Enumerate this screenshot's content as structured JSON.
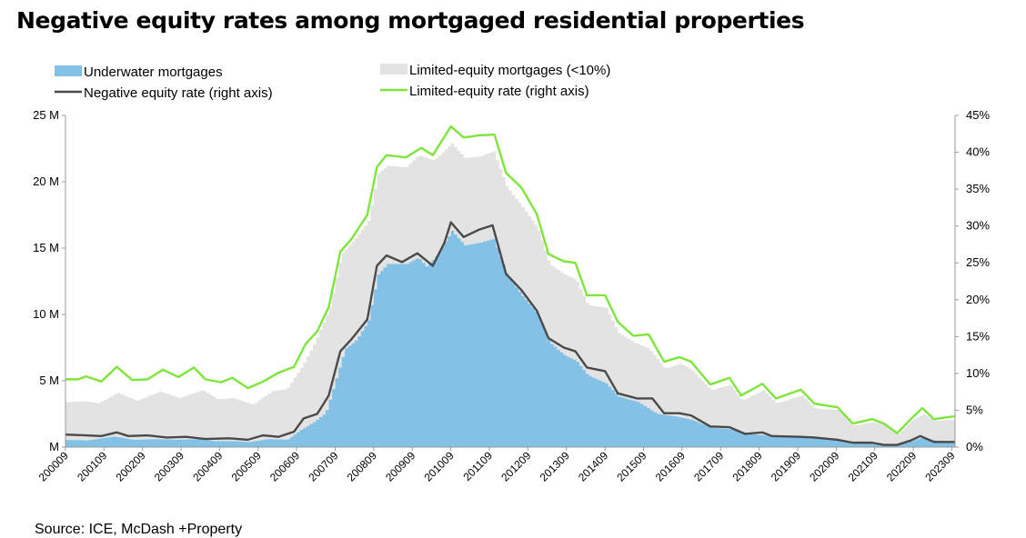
{
  "title": "Negative equity rates among mortgaged residential properties",
  "source": "Source: ICE, McDash +Property",
  "chart_data": {
    "type": "area",
    "x_key_labels": [
      "200009",
      "200109",
      "200209",
      "200309",
      "200409",
      "200509",
      "200609",
      "200709",
      "200809",
      "200909",
      "201009",
      "201109",
      "201209",
      "201309",
      "201409",
      "201509",
      "201609",
      "201709",
      "201809",
      "201909",
      "202009",
      "202109",
      "202209",
      "202309"
    ],
    "left_axis": {
      "ylim": [
        0,
        25
      ],
      "ticks": [
        0,
        5,
        10,
        15,
        20,
        25
      ],
      "tick_labels": [
        "M",
        "5 M",
        "10 M",
        "15 M",
        "20 M",
        "25 M"
      ]
    },
    "right_axis": {
      "ylim": [
        0,
        45
      ],
      "ticks": [
        0,
        5,
        10,
        15,
        20,
        25,
        30,
        35,
        40,
        45
      ],
      "tick_labels": [
        "0%",
        "5%",
        "10%",
        "15%",
        "20%",
        "25%",
        "30%",
        "35%",
        "40%",
        "45%"
      ]
    },
    "grid": false,
    "legend": {
      "placement": "top",
      "items": [
        {
          "label": "Underwater mortgages",
          "kind": "area",
          "color": "#83c1e7"
        },
        {
          "label": "Limited-equity mortgages (<10%)",
          "kind": "area",
          "color": "#e3e3e3"
        },
        {
          "label": "Negative equity rate (right axis)",
          "kind": "line",
          "color": "#4a4a4a"
        },
        {
          "label": "Limited-equity rate (right axis)",
          "kind": "line",
          "color": "#7ee53a"
        }
      ]
    },
    "series": [
      {
        "name": "Underwater mortgages",
        "axis": "left",
        "unit": "M",
        "color": "#83c1e7",
        "points": [
          [
            2000.67,
            0.55
          ],
          [
            2001.2,
            0.5
          ],
          [
            2001.9,
            0.8
          ],
          [
            2002.4,
            0.55
          ],
          [
            2003.0,
            0.6
          ],
          [
            2003.5,
            0.55
          ],
          [
            2004.1,
            0.6
          ],
          [
            2004.5,
            0.45
          ],
          [
            2005.0,
            0.45
          ],
          [
            2005.4,
            0.38
          ],
          [
            2005.9,
            0.6
          ],
          [
            2006.4,
            0.55
          ],
          [
            2006.75,
            1.3
          ],
          [
            2007.1,
            1.9
          ],
          [
            2007.4,
            2.6
          ],
          [
            2007.6,
            4.5
          ],
          [
            2007.9,
            7.4
          ],
          [
            2008.2,
            8.1
          ],
          [
            2008.5,
            9.5
          ],
          [
            2008.75,
            13.0
          ],
          [
            2009.0,
            13.8
          ],
          [
            2009.5,
            13.8
          ],
          [
            2009.8,
            14.3
          ],
          [
            2010.0,
            13.6
          ],
          [
            2010.3,
            14.5
          ],
          [
            2010.67,
            16.3
          ],
          [
            2011.0,
            15.2
          ],
          [
            2011.4,
            15.4
          ],
          [
            2011.75,
            15.7
          ],
          [
            2012.1,
            13.0
          ],
          [
            2012.5,
            11.4
          ],
          [
            2012.9,
            10.0
          ],
          [
            2013.2,
            7.9
          ],
          [
            2013.6,
            6.9
          ],
          [
            2013.9,
            6.5
          ],
          [
            2014.2,
            5.4
          ],
          [
            2014.67,
            4.8
          ],
          [
            2015.0,
            3.8
          ],
          [
            2015.5,
            3.4
          ],
          [
            2016.0,
            2.5
          ],
          [
            2016.5,
            2.3
          ],
          [
            2016.9,
            2.05
          ],
          [
            2017.4,
            1.45
          ],
          [
            2017.9,
            1.35
          ],
          [
            2018.3,
            1.0
          ],
          [
            2018.75,
            0.9
          ],
          [
            2019.2,
            0.75
          ],
          [
            2019.75,
            0.8
          ],
          [
            2020.2,
            0.7
          ],
          [
            2020.7,
            0.6
          ],
          [
            2021.2,
            0.3
          ],
          [
            2021.75,
            0.25
          ],
          [
            2022.2,
            0.2
          ],
          [
            2022.6,
            0.45
          ],
          [
            2022.9,
            0.75
          ],
          [
            2023.2,
            0.5
          ],
          [
            2023.75,
            0.35
          ]
        ]
      },
      {
        "name": "Limited-equity mortgages (<10%)",
        "axis": "left",
        "unit": "M",
        "color": "#e3e3e3",
        "points": [
          [
            2000.67,
            3.4
          ],
          [
            2001.2,
            3.45
          ],
          [
            2001.5,
            3.3
          ],
          [
            2002.0,
            4.1
          ],
          [
            2002.5,
            3.5
          ],
          [
            2003.1,
            4.2
          ],
          [
            2003.6,
            3.7
          ],
          [
            2004.2,
            4.3
          ],
          [
            2004.6,
            3.6
          ],
          [
            2005.0,
            3.7
          ],
          [
            2005.5,
            3.2
          ],
          [
            2006.0,
            4.2
          ],
          [
            2006.4,
            4.4
          ],
          [
            2006.8,
            6.2
          ],
          [
            2007.1,
            7.8
          ],
          [
            2007.5,
            10.5
          ],
          [
            2007.8,
            14.5
          ],
          [
            2008.1,
            15.5
          ],
          [
            2008.5,
            17.0
          ],
          [
            2008.75,
            20.6
          ],
          [
            2009.0,
            21.2
          ],
          [
            2009.5,
            21.1
          ],
          [
            2009.8,
            22.0
          ],
          [
            2010.2,
            21.6
          ],
          [
            2010.67,
            22.9
          ],
          [
            2011.0,
            21.8
          ],
          [
            2011.4,
            21.9
          ],
          [
            2011.75,
            22.3
          ],
          [
            2012.1,
            19.6
          ],
          [
            2012.5,
            18.1
          ],
          [
            2012.9,
            16.5
          ],
          [
            2013.2,
            13.8
          ],
          [
            2013.6,
            13.0
          ],
          [
            2013.9,
            12.6
          ],
          [
            2014.2,
            10.7
          ],
          [
            2014.67,
            10.5
          ],
          [
            2015.0,
            8.6
          ],
          [
            2015.4,
            7.9
          ],
          [
            2015.8,
            7.4
          ],
          [
            2016.2,
            5.9
          ],
          [
            2016.6,
            6.3
          ],
          [
            2016.9,
            5.8
          ],
          [
            2017.4,
            4.3
          ],
          [
            2017.9,
            4.7
          ],
          [
            2018.2,
            3.5
          ],
          [
            2018.75,
            4.3
          ],
          [
            2019.1,
            3.3
          ],
          [
            2019.75,
            3.9
          ],
          [
            2020.1,
            2.9
          ],
          [
            2020.7,
            2.8
          ],
          [
            2021.1,
            1.6
          ],
          [
            2021.6,
            1.9
          ],
          [
            2021.9,
            1.7
          ],
          [
            2022.25,
            1.0
          ],
          [
            2022.6,
            2.0
          ],
          [
            2022.9,
            2.5
          ],
          [
            2023.2,
            2.0
          ],
          [
            2023.75,
            2.05
          ]
        ]
      },
      {
        "name": "Negative equity rate (right axis)",
        "axis": "right",
        "unit": "%",
        "color": "#4a4a4a",
        "points": [
          [
            2000.67,
            1.7
          ],
          [
            2001.2,
            1.6
          ],
          [
            2001.6,
            1.5
          ],
          [
            2002.0,
            2.0
          ],
          [
            2002.3,
            1.5
          ],
          [
            2002.8,
            1.6
          ],
          [
            2003.3,
            1.3
          ],
          [
            2003.8,
            1.4
          ],
          [
            2004.3,
            1.1
          ],
          [
            2004.9,
            1.2
          ],
          [
            2005.4,
            1.0
          ],
          [
            2005.8,
            1.6
          ],
          [
            2006.2,
            1.4
          ],
          [
            2006.6,
            2.1
          ],
          [
            2006.85,
            3.9
          ],
          [
            2007.2,
            4.5
          ],
          [
            2007.5,
            7.0
          ],
          [
            2007.8,
            13.0
          ],
          [
            2008.1,
            14.7
          ],
          [
            2008.5,
            17.3
          ],
          [
            2008.75,
            24.6
          ],
          [
            2009.0,
            26.0
          ],
          [
            2009.4,
            25.1
          ],
          [
            2009.8,
            26.3
          ],
          [
            2010.2,
            24.6
          ],
          [
            2010.5,
            27.7
          ],
          [
            2010.67,
            30.5
          ],
          [
            2011.0,
            28.5
          ],
          [
            2011.4,
            29.5
          ],
          [
            2011.75,
            30.1
          ],
          [
            2012.1,
            23.5
          ],
          [
            2012.5,
            21.3
          ],
          [
            2012.9,
            18.5
          ],
          [
            2013.2,
            14.8
          ],
          [
            2013.6,
            13.5
          ],
          [
            2013.9,
            13.0
          ],
          [
            2014.2,
            10.8
          ],
          [
            2014.67,
            10.3
          ],
          [
            2015.0,
            7.3
          ],
          [
            2015.5,
            6.6
          ],
          [
            2015.9,
            6.6
          ],
          [
            2016.2,
            4.6
          ],
          [
            2016.6,
            4.6
          ],
          [
            2016.9,
            4.3
          ],
          [
            2017.4,
            2.8
          ],
          [
            2017.9,
            2.7
          ],
          [
            2018.3,
            1.8
          ],
          [
            2018.75,
            2.0
          ],
          [
            2019.0,
            1.5
          ],
          [
            2019.75,
            1.4
          ],
          [
            2020.1,
            1.3
          ],
          [
            2020.7,
            1.0
          ],
          [
            2021.1,
            0.6
          ],
          [
            2021.6,
            0.6
          ],
          [
            2021.9,
            0.3
          ],
          [
            2022.25,
            0.3
          ],
          [
            2022.6,
            0.9
          ],
          [
            2022.85,
            1.5
          ],
          [
            2023.2,
            0.7
          ],
          [
            2023.75,
            0.7
          ]
        ]
      },
      {
        "name": "Limited-equity rate (right axis)",
        "axis": "right",
        "unit": "%",
        "color": "#7ee53a",
        "points": [
          [
            2000.67,
            9.2
          ],
          [
            2001.0,
            9.2
          ],
          [
            2001.2,
            9.6
          ],
          [
            2001.6,
            8.9
          ],
          [
            2002.0,
            10.9
          ],
          [
            2002.4,
            9.1
          ],
          [
            2002.8,
            9.2
          ],
          [
            2003.2,
            10.5
          ],
          [
            2003.6,
            9.5
          ],
          [
            2004.0,
            10.8
          ],
          [
            2004.3,
            9.2
          ],
          [
            2004.7,
            8.8
          ],
          [
            2005.0,
            9.4
          ],
          [
            2005.4,
            8.0
          ],
          [
            2005.8,
            8.9
          ],
          [
            2006.2,
            10.1
          ],
          [
            2006.6,
            10.9
          ],
          [
            2006.9,
            14.0
          ],
          [
            2007.2,
            15.7
          ],
          [
            2007.5,
            19.0
          ],
          [
            2007.8,
            26.5
          ],
          [
            2008.1,
            28.3
          ],
          [
            2008.5,
            31.5
          ],
          [
            2008.75,
            38.0
          ],
          [
            2009.0,
            39.6
          ],
          [
            2009.5,
            39.3
          ],
          [
            2009.9,
            40.6
          ],
          [
            2010.2,
            39.6
          ],
          [
            2010.67,
            43.5
          ],
          [
            2011.0,
            42.0
          ],
          [
            2011.4,
            42.3
          ],
          [
            2011.8,
            42.4
          ],
          [
            2012.1,
            37.2
          ],
          [
            2012.5,
            35.2
          ],
          [
            2012.9,
            31.6
          ],
          [
            2013.2,
            26.2
          ],
          [
            2013.6,
            25.2
          ],
          [
            2013.9,
            25.0
          ],
          [
            2014.2,
            20.6
          ],
          [
            2014.67,
            20.6
          ],
          [
            2015.0,
            17.0
          ],
          [
            2015.4,
            15.1
          ],
          [
            2015.8,
            15.3
          ],
          [
            2016.2,
            11.6
          ],
          [
            2016.6,
            12.2
          ],
          [
            2016.9,
            11.6
          ],
          [
            2017.4,
            8.5
          ],
          [
            2017.9,
            9.4
          ],
          [
            2018.2,
            7.0
          ],
          [
            2018.75,
            8.6
          ],
          [
            2019.1,
            6.6
          ],
          [
            2019.75,
            7.8
          ],
          [
            2020.1,
            5.9
          ],
          [
            2020.7,
            5.4
          ],
          [
            2021.1,
            3.2
          ],
          [
            2021.6,
            3.8
          ],
          [
            2021.9,
            3.2
          ],
          [
            2022.25,
            1.9
          ],
          [
            2022.6,
            3.8
          ],
          [
            2022.9,
            5.3
          ],
          [
            2023.2,
            3.8
          ],
          [
            2023.75,
            4.2
          ]
        ]
      }
    ]
  }
}
